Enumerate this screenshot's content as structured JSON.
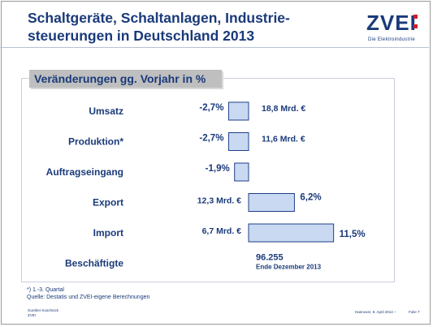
{
  "slide": {
    "title_line1": "Schaltgeräte, Schaltanlagen, Industrie-",
    "title_line2": "steuerungen in Deutschland 2013",
    "logo_text": "ZVEI",
    "logo_sub": "Die Elektroindustrie",
    "footnote1": "*) 1.-3. Quartal",
    "footnote2": "Quelle: Destatis und ZVEI-eigene Berechnungen",
    "presenter_line1": "Gunther Koschnick",
    "presenter_line2": "ZVEI",
    "date_text": "Hannover, 8. April 2014 –",
    "page_text": "Folie 7"
  },
  "chart_data": {
    "type": "bar",
    "orientation": "horizontal",
    "title": "Veränderungen gg. Vorjahr in %",
    "categories": [
      "Umsatz",
      "Produktion*",
      "Auftragseingang",
      "Export",
      "Import",
      "Beschäftigte"
    ],
    "values": [
      -2.7,
      -2.7,
      -1.9,
      6.2,
      11.5,
      null
    ],
    "value_labels": [
      "-2,7%",
      "-2,7%",
      "-1,9%",
      "6,2%",
      "11,5%",
      ""
    ],
    "absolute_labels": [
      "18,8 Mrd. €",
      "11,6 Mrd. €",
      "",
      "12,3 Mrd. €",
      "6,7 Mrd. €",
      ""
    ],
    "employees": {
      "value": "96.255",
      "note": "Ende Dezember 2013"
    },
    "bar_color": "#c9d9f1",
    "bar_border": "#1f3f8a",
    "text_color": "#1a3a7a"
  }
}
